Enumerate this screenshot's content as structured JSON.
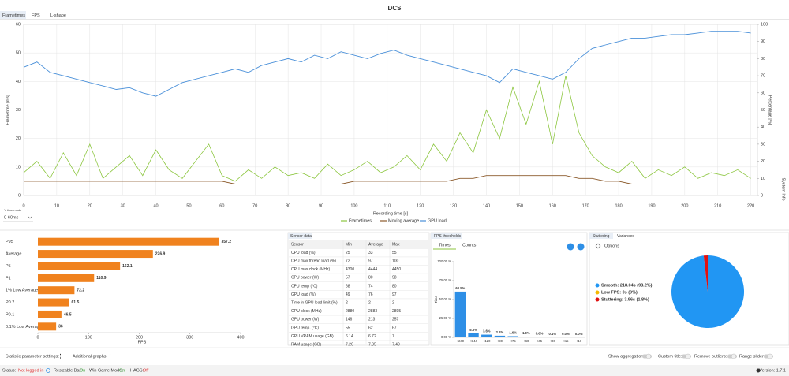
{
  "app": {
    "title": "DCS",
    "tabs": [
      "Frametimes",
      "FPS",
      "L-shape"
    ],
    "side_label": "System Info",
    "y_time_mode": "Y time mode",
    "y_time_value": "0-60ms"
  },
  "chart_data": [
    {
      "type": "line",
      "x": [
        0,
        4,
        8,
        12,
        16,
        20,
        24,
        28,
        32,
        36,
        40,
        44,
        48,
        52,
        56,
        60,
        64,
        68,
        72,
        76,
        80,
        84,
        88,
        92,
        96,
        100,
        104,
        108,
        112,
        116,
        120,
        124,
        128,
        132,
        136,
        140,
        144,
        148,
        152,
        156,
        160,
        164,
        168,
        172,
        176,
        180,
        184,
        188,
        192,
        196,
        200,
        204,
        208,
        212,
        216,
        220
      ],
      "series": [
        {
          "name": "Frametimes",
          "color": "#8cc63f",
          "values": [
            8,
            12,
            6,
            15,
            7,
            18,
            6,
            10,
            14,
            7,
            16,
            9,
            6,
            12,
            18,
            7,
            5,
            9,
            6,
            10,
            7,
            8,
            6,
            11,
            7,
            9,
            12,
            8,
            10,
            14,
            9,
            18,
            12,
            22,
            15,
            30,
            20,
            38,
            25,
            40,
            18,
            42,
            22,
            14,
            10,
            8,
            12,
            6,
            9,
            7,
            10,
            6,
            8,
            7,
            9,
            6
          ]
        },
        {
          "name": "Moving average",
          "color": "#8b5a2b",
          "values": [
            5,
            5,
            5,
            5,
            5,
            5,
            5,
            5,
            5,
            5,
            5,
            5,
            5,
            5,
            5,
            5,
            4,
            4,
            4,
            4,
            4,
            4,
            4,
            4,
            4,
            5,
            5,
            5,
            5,
            5,
            5,
            5,
            5,
            6,
            6,
            7,
            7,
            7,
            7,
            7,
            7,
            7,
            6,
            6,
            5,
            5,
            4,
            4,
            4,
            4,
            4,
            4,
            4,
            4,
            4,
            4
          ]
        },
        {
          "name": "GPU load",
          "color": "#4a90d9",
          "axis": "y2",
          "values": [
            75,
            78,
            72,
            70,
            68,
            66,
            64,
            62,
            63,
            60,
            58,
            62,
            66,
            68,
            70,
            72,
            74,
            72,
            76,
            78,
            80,
            78,
            82,
            80,
            84,
            82,
            80,
            83,
            85,
            82,
            80,
            78,
            76,
            74,
            72,
            70,
            66,
            74,
            72,
            70,
            68,
            72,
            80,
            86,
            88,
            90,
            92,
            92,
            93,
            94,
            94,
            95,
            96,
            96,
            96,
            95
          ]
        }
      ],
      "xlim": [
        0,
        222
      ],
      "ylim": [
        0,
        60
      ],
      "y2lim": [
        0,
        100
      ],
      "xticks": [
        0,
        10,
        20,
        30,
        40,
        50,
        60,
        70,
        80,
        90,
        100,
        110,
        120,
        130,
        140,
        150,
        160,
        170,
        180,
        190,
        200,
        210,
        220
      ],
      "yticks": [
        0,
        10,
        20,
        30,
        40,
        50,
        60
      ],
      "y2ticks": [
        0,
        10,
        20,
        30,
        40,
        50,
        60,
        70,
        80,
        90,
        100
      ],
      "xlabel": "Recording time [s]",
      "ylabel": "Frametime [ms]",
      "y2label": "Percentage [%]",
      "grid": true
    },
    {
      "type": "hbar",
      "categories": [
        "P95",
        "Average",
        "P5",
        "P1",
        "1% Low Average",
        "P0.2",
        "P0.1",
        "0.1% Low Average"
      ],
      "values": [
        357.2,
        226.9,
        162.1,
        110.9,
        72.2,
        61.5,
        46.5,
        36
      ],
      "color": "#f0821e",
      "xlim": [
        0,
        400
      ],
      "xticks": [
        0,
        100,
        200,
        300,
        400
      ],
      "xlabel": "FPS"
    },
    {
      "type": "bar",
      "categories": [
        "<240",
        "<144",
        "<120",
        "<90",
        "<75",
        "<60",
        "<45",
        "<30",
        "<15",
        "<10"
      ],
      "values": [
        60.5,
        5.3,
        3.6,
        2.2,
        1.6,
        1.0,
        0.6,
        0.1,
        0.0,
        0.0
      ],
      "value_labels": [
        "60.5%",
        "5.3%",
        "3.6%",
        "2.2%",
        "1.6%",
        "1.0%",
        "0.6%",
        "0.1%",
        "0.0%",
        "0.0%"
      ],
      "color": "#2e8fe6",
      "ylim": [
        0,
        100
      ],
      "yticks": [
        {
          "value": 0,
          "label": "0.00 %"
        },
        {
          "value": 25,
          "label": "25.00 %"
        },
        {
          "value": 50,
          "label": "50.00 %"
        },
        {
          "value": 75,
          "label": "75.00 %"
        },
        {
          "value": 100,
          "label": "100.00 %"
        }
      ],
      "ylabel": "Time"
    },
    {
      "type": "pie",
      "labels": [
        "Smooth: 218.04s (98.2%)",
        "Low FPS: 0s (0%)",
        "Stuttering: 3.96s (1.8%)"
      ],
      "values": [
        218.04,
        0,
        3.96
      ],
      "colors": [
        "#2196f3",
        "#f5b800",
        "#e01010"
      ]
    }
  ],
  "sensor_panel": {
    "title": "Sensor data",
    "header": [
      "Sensor",
      "Min",
      "Average",
      "Max"
    ],
    "rows": [
      [
        "CPU load (%)",
        "25",
        "33",
        "55"
      ],
      [
        "CPU max thread load (%)",
        "72",
        "97",
        "100"
      ],
      [
        "CPU max clock (MHz)",
        "4300",
        "4444",
        "4450"
      ],
      [
        "CPU power (W)",
        "57",
        "80",
        "98"
      ],
      [
        "CPU temp (°C)",
        "68",
        "74",
        "80"
      ],
      [
        "GPU load (%)",
        "49",
        "76",
        "97"
      ],
      [
        "Time in GPU load limit (%)",
        "2",
        "2",
        "2"
      ],
      [
        "GPU clock (MHz)",
        "2880",
        "2883",
        "2895"
      ],
      [
        "GPU power (W)",
        "146",
        "213",
        "257"
      ],
      [
        "GPU temp. (°C)",
        "55",
        "62",
        "67"
      ],
      [
        "GPU VRAM usage (GB)",
        "6.14",
        "6.72",
        "7"
      ],
      [
        "RAM usage (GB)",
        "7.26",
        "7.35",
        "7.49"
      ]
    ]
  },
  "threshold_panel": {
    "title": "FPS thresholds",
    "tabs": [
      "Times",
      "Counts"
    ]
  },
  "stutter_panel": {
    "tabs": [
      "Stuttering",
      "Variances"
    ],
    "options": "Options"
  },
  "controls": {
    "left": [
      "Statistic parameter settings:",
      "Additional graphs:"
    ],
    "right": [
      "Show aggregation:",
      "Custom title:",
      "Remove outliers:",
      "Range slider:"
    ]
  },
  "status": {
    "items": [
      {
        "label": "Status:",
        "value": "Not logged in"
      },
      {
        "label": "Resizable Bar:",
        "value": "On"
      },
      {
        "label": "Win Game Mode:",
        "value": "On"
      },
      {
        "label": "HAGS:",
        "value": "Off"
      }
    ],
    "version": "Version: 1.7.1"
  }
}
